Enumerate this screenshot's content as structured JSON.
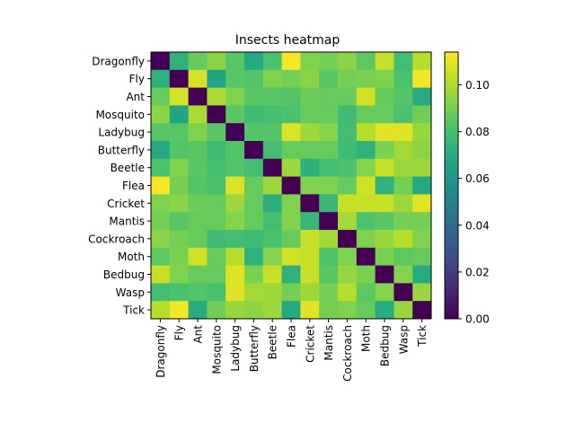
{
  "chart_data": {
    "type": "heatmap",
    "title": "Insects heatmap",
    "xlabel": "",
    "ylabel": "",
    "categories": [
      "Dragonfly",
      "Fly",
      "Ant",
      "Mosquito",
      "Ladybug",
      "Butterfly",
      "Beetle",
      "Flea",
      "Cricket",
      "Mantis",
      "Cockroach",
      "Moth",
      "Bedbug",
      "Wasp",
      "Tick"
    ],
    "colormap": "viridis",
    "vmin": 0.0,
    "vmax": 0.114,
    "colorbar_ticks": [
      "0.00",
      "0.02",
      "0.04",
      "0.06",
      "0.08",
      "0.10"
    ],
    "colorbar_tick_values": [
      0.0,
      0.02,
      0.04,
      0.06,
      0.08,
      0.1
    ],
    "matrix": [
      [
        0.0,
        0.073,
        0.087,
        0.094,
        0.084,
        0.069,
        0.081,
        0.113,
        0.092,
        0.09,
        0.094,
        0.085,
        0.104,
        0.079,
        0.101
      ],
      [
        0.073,
        0.0,
        0.107,
        0.067,
        0.084,
        0.083,
        0.092,
        0.09,
        0.094,
        0.084,
        0.09,
        0.091,
        0.092,
        0.081,
        0.112
      ],
      [
        0.087,
        0.107,
        0.0,
        0.099,
        0.092,
        0.084,
        0.084,
        0.083,
        0.088,
        0.087,
        0.087,
        0.106,
        0.087,
        0.083,
        0.07
      ],
      [
        0.094,
        0.067,
        0.099,
        0.0,
        0.084,
        0.078,
        0.08,
        0.081,
        0.087,
        0.087,
        0.078,
        0.087,
        0.087,
        0.081,
        0.089
      ],
      [
        0.084,
        0.084,
        0.092,
        0.084,
        0.0,
        0.083,
        0.083,
        0.108,
        0.097,
        0.093,
        0.079,
        0.101,
        0.109,
        0.109,
        0.096
      ],
      [
        0.069,
        0.083,
        0.084,
        0.078,
        0.083,
        0.0,
        0.079,
        0.087,
        0.087,
        0.087,
        0.078,
        0.073,
        0.091,
        0.098,
        0.094
      ],
      [
        0.081,
        0.092,
        0.084,
        0.08,
        0.083,
        0.079,
        0.0,
        0.097,
        0.072,
        0.08,
        0.081,
        0.093,
        0.104,
        0.097,
        0.097
      ],
      [
        0.113,
        0.09,
        0.083,
        0.081,
        0.108,
        0.087,
        0.097,
        0.0,
        0.092,
        0.092,
        0.087,
        0.106,
        0.073,
        0.09,
        0.069
      ],
      [
        0.092,
        0.094,
        0.088,
        0.087,
        0.097,
        0.087,
        0.072,
        0.092,
        0.0,
        0.076,
        0.104,
        0.104,
        0.104,
        0.097,
        0.109
      ],
      [
        0.09,
        0.084,
        0.087,
        0.087,
        0.093,
        0.087,
        0.08,
        0.092,
        0.076,
        0.0,
        0.098,
        0.082,
        0.084,
        0.09,
        0.09
      ],
      [
        0.094,
        0.09,
        0.087,
        0.078,
        0.079,
        0.078,
        0.081,
        0.087,
        0.104,
        0.098,
        0.0,
        0.092,
        0.096,
        0.101,
        0.092
      ],
      [
        0.085,
        0.091,
        0.106,
        0.087,
        0.101,
        0.073,
        0.093,
        0.106,
        0.104,
        0.082,
        0.092,
        0.0,
        0.091,
        0.085,
        0.087
      ],
      [
        0.104,
        0.092,
        0.087,
        0.087,
        0.109,
        0.091,
        0.104,
        0.073,
        0.104,
        0.084,
        0.096,
        0.091,
        0.0,
        0.093,
        0.07
      ],
      [
        0.079,
        0.081,
        0.083,
        0.081,
        0.109,
        0.098,
        0.097,
        0.09,
        0.097,
        0.09,
        0.101,
        0.085,
        0.093,
        0.0,
        0.096
      ],
      [
        0.101,
        0.112,
        0.07,
        0.089,
        0.096,
        0.094,
        0.097,
        0.069,
        0.109,
        0.09,
        0.092,
        0.087,
        0.07,
        0.096,
        0.0
      ]
    ]
  }
}
